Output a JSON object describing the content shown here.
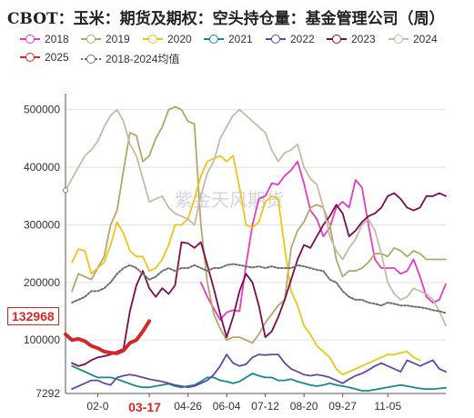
{
  "title": "CBOT：玉米：期货及期权：空头持仓量：基金管理公司（周）",
  "legend": [
    {
      "name": "2018",
      "color": "#e83cc0",
      "style": "solid"
    },
    {
      "name": "2019",
      "color": "#b5a66c",
      "style": "solid"
    },
    {
      "name": "2020",
      "color": "#f0c419",
      "style": "solid"
    },
    {
      "name": "2021",
      "color": "#168a8a",
      "style": "solid"
    },
    {
      "name": "2022",
      "color": "#5d4ba8",
      "style": "solid"
    },
    {
      "name": "2023",
      "color": "#7a0d4f",
      "style": "solid"
    },
    {
      "name": "2024",
      "color": "#c4bca8",
      "style": "solid"
    },
    {
      "name": "2025",
      "color": "#d62728",
      "style": "solid"
    },
    {
      "name": "2018-2024均值",
      "color": "#707070",
      "style": "dotted"
    }
  ],
  "callout_value": "132968",
  "highlight_x": "03-17",
  "watermark": "紫金天风期货",
  "chart_data": {
    "type": "line",
    "title": "CBOT：玉米：期货及期权：空头持仓量：基金管理公司（周）",
    "x_ticks": [
      "02-0",
      "03-17",
      "04-26",
      "06-04",
      "07-12",
      "08-20",
      "09-27",
      "11-05"
    ],
    "y_ticks": [
      7292,
      100000,
      200000,
      300000,
      400000,
      500000
    ],
    "ylim": [
      7292,
      520000
    ],
    "grid": "horizontal",
    "legend_position": "top",
    "series": [
      {
        "name": "2018",
        "values": [
          null,
          null,
          null,
          null,
          null,
          null,
          null,
          null,
          null,
          null,
          null,
          null,
          null,
          null,
          null,
          null,
          null,
          null,
          null,
          null,
          null,
          200000,
          175000,
          155000,
          135000,
          148000,
          152000,
          150000,
          230000,
          300000,
          345000,
          350000,
          372000,
          370000,
          385000,
          395000,
          410000,
          372000,
          325000,
          310000,
          280000,
          295000,
          330000,
          340000,
          330000,
          378000,
          365000,
          300000,
          240000,
          225000,
          225000,
          225000,
          215000,
          220000,
          240000,
          210000,
          175000,
          165000,
          170000,
          197000
        ]
      },
      {
        "name": "2019",
        "values": [
          null,
          185000,
          215000,
          210000,
          205000,
          225000,
          245000,
          300000,
          325000,
          395000,
          460000,
          455000,
          410000,
          420000,
          450000,
          470000,
          500000,
          505000,
          500000,
          480000,
          475000,
          300000,
          200000,
          145000,
          120000,
          100000,
          105000,
          105000,
          100000,
          95000,
          110000,
          130000,
          145000,
          160000,
          170000,
          260000,
          290000,
          305000,
          330000,
          335000,
          330000,
          300000,
          240000,
          210000,
          220000,
          220000,
          225000,
          235000,
          250000,
          250000,
          245000,
          260000,
          255000,
          245000,
          255000,
          250000,
          240000,
          240000,
          240000,
          240000
        ]
      },
      {
        "name": "2020",
        "values": [
          null,
          235000,
          258000,
          255000,
          215000,
          225000,
          235000,
          265000,
          305000,
          285000,
          255000,
          245000,
          245000,
          220000,
          225000,
          240000,
          265000,
          300000,
          300000,
          310000,
          345000,
          385000,
          410000,
          415000,
          420000,
          410000,
          420000,
          365000,
          300000,
          295000,
          305000,
          340000,
          350000,
          345000,
          260000,
          185000,
          160000,
          125000,
          110000,
          90000,
          80000,
          70000,
          50000,
          40000,
          45000,
          50000,
          55000,
          60000,
          65000,
          70000,
          75000,
          75000,
          78000,
          80000,
          70000,
          65000,
          null,
          null,
          null,
          null
        ]
      },
      {
        "name": "2021",
        "values": [
          null,
          55000,
          50000,
          45000,
          40000,
          35000,
          35000,
          35000,
          32000,
          28000,
          24000,
          20000,
          18000,
          18000,
          20000,
          22000,
          24000,
          20000,
          18000,
          20000,
          22000,
          28000,
          35000,
          35000,
          30000,
          28000,
          25000,
          28000,
          35000,
          42000,
          38000,
          35000,
          35000,
          30000,
          30000,
          32000,
          28000,
          25000,
          22000,
          20000,
          22000,
          25000,
          22000,
          20000,
          18000,
          15000,
          12000,
          12000,
          14000,
          16000,
          18000,
          20000,
          22000,
          20000,
          18000,
          16000,
          15000,
          15000,
          16000,
          17000
        ]
      },
      {
        "name": "2022",
        "values": [
          null,
          15000,
          20000,
          25000,
          30000,
          30000,
          25000,
          22000,
          35000,
          38000,
          40000,
          38000,
          35000,
          32000,
          30000,
          28000,
          25000,
          22000,
          20000,
          18000,
          20000,
          25000,
          30000,
          40000,
          55000,
          75000,
          60000,
          55000,
          58000,
          70000,
          75000,
          74000,
          75000,
          75000,
          60000,
          50000,
          45000,
          40000,
          38000,
          40000,
          38000,
          35000,
          30000,
          25000,
          32000,
          38000,
          42000,
          48000,
          55000,
          60000,
          55000,
          50000,
          45000,
          65000,
          60000,
          55000,
          60000,
          65000,
          50000,
          45000
        ]
      },
      {
        "name": "2023",
        "values": [
          null,
          60000,
          55000,
          58000,
          65000,
          70000,
          72000,
          75000,
          80000,
          85000,
          150000,
          195000,
          220000,
          190000,
          175000,
          190000,
          180000,
          195000,
          270000,
          268000,
          260000,
          270000,
          230000,
          190000,
          145000,
          105000,
          140000,
          185000,
          215000,
          200000,
          160000,
          105000,
          115000,
          140000,
          170000,
          205000,
          240000,
          265000,
          260000,
          280000,
          300000,
          315000,
          335000,
          320000,
          280000,
          290000,
          305000,
          315000,
          320000,
          330000,
          350000,
          355000,
          345000,
          330000,
          325000,
          330000,
          350000,
          350000,
          355000,
          350000
        ]
      },
      {
        "name": "2024",
        "values": [
          360000,
          380000,
          400000,
          420000,
          430000,
          445000,
          470000,
          490000,
          500000,
          480000,
          440000,
          420000,
          380000,
          340000,
          345000,
          350000,
          330000,
          320000,
          315000,
          310000,
          300000,
          350000,
          390000,
          410000,
          450000,
          470000,
          490000,
          500000,
          490000,
          480000,
          470000,
          460000,
          430000,
          410000,
          425000,
          430000,
          440000,
          400000,
          380000,
          370000,
          330000,
          280000,
          255000,
          240000,
          260000,
          275000,
          300000,
          310000,
          290000,
          250000,
          200000,
          180000,
          170000,
          175000,
          190000,
          185000,
          180000,
          170000,
          150000,
          125000
        ]
      },
      {
        "name": "2025",
        "values": [
          110000,
          100000,
          102000,
          98000,
          90000,
          86000,
          80000,
          78000,
          77000,
          82000,
          95000,
          100000,
          115000,
          132968
        ]
      },
      {
        "name": "2018-2024均值",
        "values": [
          null,
          165000,
          170000,
          175000,
          185000,
          185000,
          190000,
          200000,
          215000,
          225000,
          230000,
          225000,
          215000,
          205000,
          210000,
          220000,
          225000,
          220000,
          225000,
          225000,
          230000,
          225000,
          220000,
          225000,
          225000,
          230000,
          232000,
          230000,
          228000,
          226000,
          228000,
          225000,
          228000,
          225000,
          225000,
          225000,
          230000,
          228000,
          225000,
          222000,
          220000,
          205000,
          200000,
          185000,
          175000,
          170000,
          170000,
          165000,
          163000,
          160000,
          165000,
          163000,
          160000,
          160000,
          158000,
          157000,
          155000,
          152000,
          150000,
          147000
        ]
      }
    ]
  }
}
